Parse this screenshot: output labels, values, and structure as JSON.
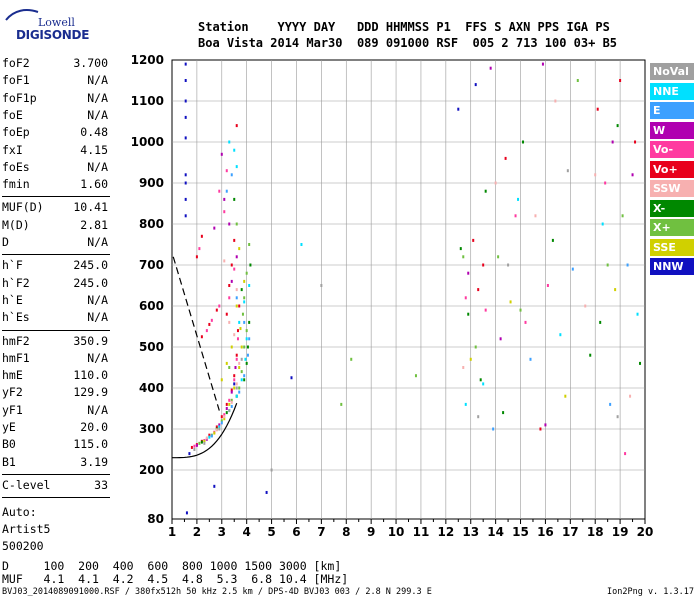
{
  "logo": {
    "line1": "Lowell",
    "line2": "DIGISONDE"
  },
  "header": {
    "line1": "Station    YYYY DAY   DDD HHMMSS P1  FFS S AXN PPS IGA PS",
    "line2": "Boa Vista 2014 Mar30  089 091000 RSF  005 2 713 100 03+ B5"
  },
  "params": {
    "group1": [
      {
        "k": "foF2",
        "v": "3.700"
      },
      {
        "k": "foF1",
        "v": "N/A"
      },
      {
        "k": "foF1p",
        "v": "N/A"
      },
      {
        "k": "foE",
        "v": "N/A"
      },
      {
        "k": "foEp",
        "v": "0.48"
      },
      {
        "k": "fxI",
        "v": "4.15"
      },
      {
        "k": "foEs",
        "v": "N/A"
      },
      {
        "k": "fmin",
        "v": "1.60"
      }
    ],
    "group2": [
      {
        "k": "MUF(D)",
        "v": "10.41"
      },
      {
        "k": "M(D)",
        "v": "2.81"
      },
      {
        "k": "D",
        "v": "N/A"
      }
    ],
    "group3": [
      {
        "k": "h`F",
        "v": "245.0"
      },
      {
        "k": "h`F2",
        "v": "245.0"
      },
      {
        "k": "h`E",
        "v": "N/A"
      },
      {
        "k": "h`Es",
        "v": "N/A"
      }
    ],
    "group4": [
      {
        "k": "hmF2",
        "v": "350.9"
      },
      {
        "k": "hmF1",
        "v": "N/A"
      },
      {
        "k": "hmE",
        "v": "110.0"
      },
      {
        "k": "yF2",
        "v": "129.9"
      },
      {
        "k": "yF1",
        "v": "N/A"
      },
      {
        "k": "yE",
        "v": "20.0"
      },
      {
        "k": "B0",
        "v": "115.0"
      },
      {
        "k": "B1",
        "v": "3.19"
      }
    ],
    "group5": [
      {
        "k": "C-level",
        "v": "33"
      }
    ]
  },
  "auto": {
    "l1": "Auto:",
    "l2": "Artist5",
    "l3": "500200"
  },
  "bottom": {
    "d_line": "D     100  200  400  600  800 1000 1500 3000 [km]",
    "muf_line": "MUF   4.1  4.1  4.2  4.5  4.8  5.3  6.8 10.4 [MHz]"
  },
  "footer": {
    "left": "BVJ03_2014089091000.RSF / 380fx512h 50 kHz 2.5 km / DPS-4D BVJ03 003 / 2.8 N 299.3 E",
    "right": "Ion2Png v. 1.3.17"
  },
  "legend": [
    {
      "label": "NoVal",
      "color": "#a0a0a0"
    },
    {
      "label": "NNE",
      "color": "#00e0ff"
    },
    {
      "label": "E",
      "color": "#3ca0ff"
    },
    {
      "label": "W",
      "color": "#b000b0"
    },
    {
      "label": "Vo-",
      "color": "#ff3aa0"
    },
    {
      "label": "Vo+",
      "color": "#e8001c"
    },
    {
      "label": "SSW",
      "color": "#f7b0b0"
    },
    {
      "label": "X-",
      "color": "#008800"
    },
    {
      "label": "X+",
      "color": "#70c040"
    },
    {
      "label": "SSE",
      "color": "#d0d000"
    },
    {
      "label": "NNW",
      "color": "#1010c0"
    }
  ],
  "chart_data": {
    "type": "scatter",
    "xlim": [
      1,
      20
    ],
    "ylim": [
      80,
      1200
    ],
    "x_ticks": [
      1,
      2,
      3,
      4,
      5,
      6,
      7,
      8,
      9,
      10,
      11,
      12,
      13,
      14,
      15,
      16,
      17,
      18,
      19,
      20
    ],
    "y_ticks": [
      80,
      200,
      300,
      400,
      500,
      600,
      700,
      800,
      900,
      1000,
      1100,
      1200
    ],
    "grid": true,
    "series": [
      {
        "name": "Vo+",
        "values": [
          [
            1.8,
            255
          ],
          [
            2.0,
            262
          ],
          [
            2.2,
            270
          ],
          [
            2.5,
            285
          ],
          [
            2.8,
            305
          ],
          [
            3.0,
            330
          ],
          [
            3.2,
            360
          ],
          [
            3.4,
            395
          ],
          [
            3.5,
            430
          ],
          [
            3.6,
            480
          ],
          [
            3.65,
            540
          ],
          [
            3.7,
            600
          ],
          [
            3.3,
            650
          ],
          [
            3.4,
            700
          ],
          [
            3.5,
            760
          ],
          [
            3.2,
            580
          ],
          [
            2.2,
            525
          ],
          [
            2.5,
            555
          ],
          [
            2.8,
            590
          ],
          [
            2.0,
            720
          ],
          [
            2.2,
            770
          ],
          [
            3.6,
            1040
          ],
          [
            13.1,
            760
          ],
          [
            13.3,
            640
          ],
          [
            13.5,
            700
          ],
          [
            14.4,
            960
          ],
          [
            15.8,
            300
          ],
          [
            18.1,
            1080
          ],
          [
            19.0,
            1150
          ],
          [
            19.6,
            1000
          ]
        ]
      },
      {
        "name": "Vo-",
        "values": [
          [
            1.9,
            258
          ],
          [
            2.3,
            272
          ],
          [
            2.7,
            292
          ],
          [
            3.1,
            335
          ],
          [
            3.3,
            370
          ],
          [
            3.5,
            420
          ],
          [
            3.6,
            470
          ],
          [
            3.65,
            520
          ],
          [
            3.5,
            690
          ],
          [
            3.3,
            620
          ],
          [
            2.4,
            540
          ],
          [
            2.6,
            565
          ],
          [
            2.9,
            600
          ],
          [
            2.1,
            740
          ],
          [
            2.9,
            880
          ],
          [
            3.1,
            830
          ],
          [
            3.2,
            930
          ],
          [
            12.8,
            620
          ],
          [
            13.6,
            590
          ],
          [
            14.8,
            820
          ],
          [
            15.2,
            560
          ],
          [
            16.1,
            650
          ],
          [
            18.4,
            900
          ],
          [
            19.2,
            240
          ]
        ]
      },
      {
        "name": "W",
        "values": [
          [
            2.0,
            260
          ],
          [
            2.4,
            275
          ],
          [
            2.9,
            310
          ],
          [
            3.2,
            350
          ],
          [
            3.4,
            390
          ],
          [
            3.55,
            450
          ],
          [
            3.4,
            660
          ],
          [
            3.6,
            720
          ],
          [
            3.3,
            800
          ],
          [
            3.1,
            860
          ],
          [
            2.7,
            790
          ],
          [
            3.0,
            970
          ],
          [
            12.9,
            680
          ],
          [
            13.8,
            1180
          ],
          [
            14.2,
            520
          ],
          [
            15.9,
            1190
          ],
          [
            16.0,
            310
          ],
          [
            18.7,
            1000
          ],
          [
            19.5,
            920
          ]
        ]
      },
      {
        "name": "X+",
        "values": [
          [
            2.1,
            265
          ],
          [
            2.6,
            285
          ],
          [
            3.0,
            320
          ],
          [
            3.4,
            370
          ],
          [
            3.7,
            400
          ],
          [
            3.8,
            440
          ],
          [
            3.9,
            500
          ],
          [
            4.0,
            540
          ],
          [
            3.85,
            580
          ],
          [
            3.3,
            450
          ],
          [
            3.9,
            620
          ],
          [
            4.0,
            680
          ],
          [
            4.1,
            750
          ],
          [
            3.6,
            800
          ],
          [
            7.8,
            360
          ],
          [
            8.2,
            470
          ],
          [
            10.8,
            430
          ],
          [
            12.7,
            720
          ],
          [
            13.2,
            500
          ],
          [
            14.1,
            720
          ],
          [
            15.0,
            590
          ],
          [
            17.3,
            1150
          ],
          [
            18.5,
            700
          ],
          [
            19.1,
            820
          ]
        ]
      },
      {
        "name": "X-",
        "values": [
          [
            2.2,
            268
          ],
          [
            2.8,
            300
          ],
          [
            3.2,
            340
          ],
          [
            3.6,
            380
          ],
          [
            3.9,
            420
          ],
          [
            4.0,
            460
          ],
          [
            4.05,
            500
          ],
          [
            4.1,
            560
          ],
          [
            3.8,
            640
          ],
          [
            4.15,
            700
          ],
          [
            3.5,
            860
          ],
          [
            12.6,
            740
          ],
          [
            12.9,
            580
          ],
          [
            13.4,
            420
          ],
          [
            13.6,
            880
          ],
          [
            14.3,
            340
          ],
          [
            15.1,
            1000
          ],
          [
            16.3,
            760
          ],
          [
            17.8,
            480
          ],
          [
            18.2,
            560
          ],
          [
            18.9,
            1040
          ],
          [
            19.8,
            460
          ]
        ]
      },
      {
        "name": "SSE",
        "values": [
          [
            2.3,
            270
          ],
          [
            2.7,
            290
          ],
          [
            3.1,
            325
          ],
          [
            3.3,
            360
          ],
          [
            3.5,
            400
          ],
          [
            3.7,
            450
          ],
          [
            3.8,
            500
          ],
          [
            3.75,
            545
          ],
          [
            3.2,
            460
          ],
          [
            3.4,
            500
          ],
          [
            3.0,
            420
          ],
          [
            3.6,
            600
          ],
          [
            3.9,
            660
          ],
          [
            3.7,
            740
          ],
          [
            13.0,
            470
          ],
          [
            14.6,
            610
          ],
          [
            16.8,
            380
          ],
          [
            18.8,
            640
          ]
        ]
      },
      {
        "name": "NNE",
        "values": [
          [
            2.5,
            280
          ],
          [
            2.9,
            305
          ],
          [
            3.3,
            345
          ],
          [
            3.6,
            380
          ],
          [
            3.8,
            420
          ],
          [
            3.95,
            470
          ],
          [
            4.0,
            520
          ],
          [
            3.7,
            560
          ],
          [
            3.5,
            980
          ],
          [
            3.3,
            1000
          ],
          [
            3.6,
            940
          ],
          [
            3.9,
            610
          ],
          [
            4.1,
            650
          ],
          [
            6.2,
            750
          ],
          [
            12.8,
            360
          ],
          [
            13.5,
            410
          ],
          [
            14.9,
            860
          ],
          [
            16.6,
            530
          ],
          [
            18.3,
            800
          ],
          [
            19.7,
            580
          ]
        ]
      },
      {
        "name": "E",
        "values": [
          [
            2.6,
            283
          ],
          [
            3.0,
            315
          ],
          [
            3.4,
            355
          ],
          [
            3.7,
            390
          ],
          [
            3.9,
            430
          ],
          [
            4.05,
            480
          ],
          [
            4.1,
            520
          ],
          [
            3.9,
            560
          ],
          [
            3.6,
            620
          ],
          [
            3.2,
            880
          ],
          [
            3.4,
            920
          ],
          [
            13.9,
            300
          ],
          [
            15.4,
            470
          ],
          [
            17.1,
            690
          ],
          [
            18.6,
            360
          ],
          [
            19.3,
            700
          ]
        ]
      },
      {
        "name": "SSW",
        "values": [
          [
            2.4,
            278
          ],
          [
            2.8,
            298
          ],
          [
            3.1,
            330
          ],
          [
            3.4,
            365
          ],
          [
            3.6,
            410
          ],
          [
            3.7,
            460
          ],
          [
            3.5,
            530
          ],
          [
            3.3,
            560
          ],
          [
            3.6,
            640
          ],
          [
            3.1,
            710
          ],
          [
            12.7,
            450
          ],
          [
            14.0,
            900
          ],
          [
            15.6,
            820
          ],
          [
            16.4,
            1100
          ],
          [
            17.6,
            600
          ],
          [
            18.0,
            920
          ],
          [
            19.4,
            380
          ]
        ]
      },
      {
        "name": "NNW",
        "values": [
          [
            1.55,
            1190
          ],
          [
            1.55,
            1150
          ],
          [
            1.55,
            1100
          ],
          [
            1.55,
            1060
          ],
          [
            1.55,
            1010
          ],
          [
            1.55,
            920
          ],
          [
            1.55,
            900
          ],
          [
            1.55,
            860
          ],
          [
            1.55,
            820
          ],
          [
            1.6,
            95
          ],
          [
            1.7,
            240
          ],
          [
            3.5,
            410
          ],
          [
            5.8,
            425
          ],
          [
            2.7,
            160
          ],
          [
            4.8,
            145
          ],
          [
            12.5,
            1080
          ],
          [
            13.2,
            1140
          ]
        ]
      },
      {
        "name": "NoVal",
        "values": [
          [
            1.9,
            250
          ],
          [
            2.3,
            265
          ],
          [
            2.9,
            300
          ],
          [
            3.3,
            345
          ],
          [
            3.6,
            400
          ],
          [
            3.8,
            470
          ],
          [
            13.3,
            330
          ],
          [
            14.5,
            700
          ],
          [
            16.9,
            930
          ],
          [
            18.9,
            330
          ],
          [
            5.0,
            200
          ],
          [
            7.0,
            650
          ]
        ]
      }
    ]
  }
}
